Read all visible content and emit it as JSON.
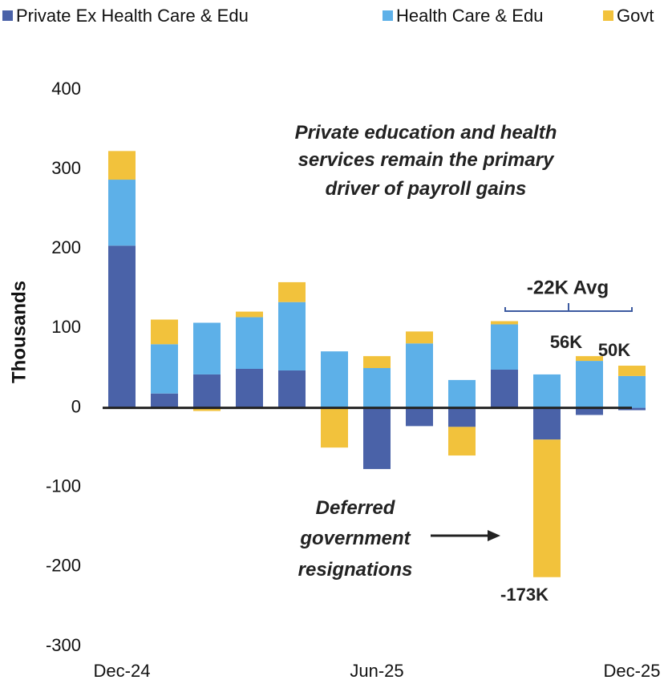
{
  "chart_data": {
    "type": "stacked_bar",
    "categories": [
      "Dec-24",
      null,
      null,
      null,
      null,
      null,
      "Jun-25",
      null,
      null,
      null,
      null,
      null,
      "Dec-25"
    ],
    "series": [
      {
        "name": "Private Ex Health Care & Edu",
        "color": "#4a62a8",
        "values": [
          204,
          18,
          42,
          49,
          47,
          0,
          -77,
          -23,
          -24,
          48,
          -40,
          -9,
          -3
        ]
      },
      {
        "name": "Health Care & Edu",
        "color": "#5db0e8",
        "values": [
          83,
          62,
          65,
          65,
          86,
          71,
          50,
          81,
          35,
          57,
          42,
          59,
          40
        ]
      },
      {
        "name": "Govt",
        "color": "#f2c23c",
        "values": [
          36,
          31,
          -4,
          7,
          25,
          -50,
          15,
          15,
          -36,
          4,
          -173,
          6,
          13
        ]
      }
    ],
    "ylabel": "Thousands",
    "ylim": [
      -300,
      400
    ],
    "yticks": [
      -300,
      -200,
      -100,
      0,
      100,
      200,
      300,
      400
    ],
    "annotations": [
      "Private education and health services remain the primary driver of payroll gains",
      "Deferred government resignations",
      "-22K Avg",
      "56K",
      "50K",
      "-173K"
    ]
  }
}
